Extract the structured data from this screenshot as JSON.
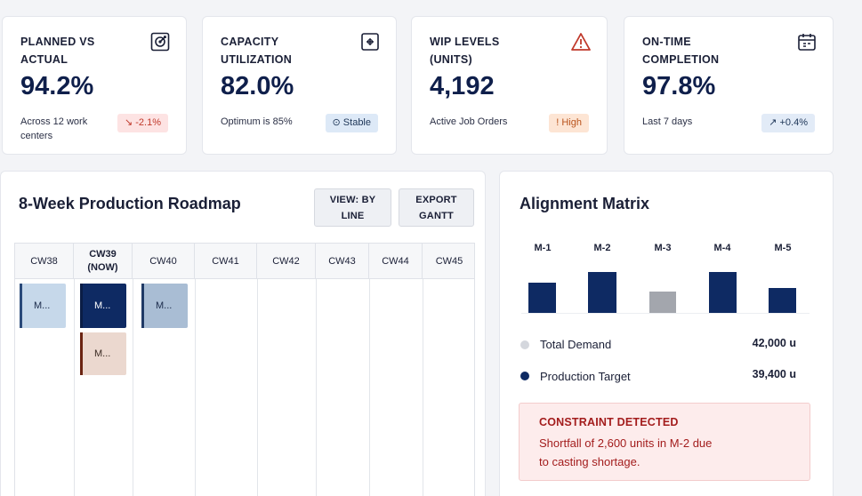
{
  "kpis": [
    {
      "title": "PLANNED VS ACTUAL",
      "value": "94.2%",
      "sub": "Across 12 work centers",
      "badge": "↘ -2.1%",
      "icon": "target-icon"
    },
    {
      "title": "CAPACITY UTILIZATION",
      "value": "82.0%",
      "sub": "Optimum is 85%",
      "badge": "⊙ Stable",
      "icon": "gauge-icon"
    },
    {
      "title": "WIP LEVELS (UNITS)",
      "value": "4,192",
      "sub": "Active Job Orders",
      "badge": "! High",
      "icon": "warning-icon"
    },
    {
      "title": "ON-TIME COMPLETION",
      "value": "97.8%",
      "sub": "Last 7 days",
      "badge": "↗ +0.4%",
      "icon": "calendar-icon"
    }
  ],
  "roadmap": {
    "title": "8-Week Production Roadmap",
    "view_button": "VIEW: BY LINE",
    "export_button": "EXPORT GANTT",
    "weeks": [
      "CW38",
      "CW39 (NOW)",
      "CW40",
      "CW41",
      "CW42",
      "CW43",
      "CW44",
      "CW45"
    ],
    "tasks": [
      {
        "label": "M..."
      },
      {
        "label": "M..."
      },
      {
        "label": "M..."
      },
      {
        "label": "M..."
      }
    ]
  },
  "matrix": {
    "title": "Alignment Matrix",
    "machines": [
      "M-1",
      "M-2",
      "M-3",
      "M-4",
      "M-5"
    ],
    "legend": [
      {
        "label": "Total Demand",
        "value": "42,000 u",
        "color": "#d4d7dd"
      },
      {
        "label": "Production Target",
        "value": "39,400 u",
        "color": "#0e2a63"
      }
    ],
    "alert": {
      "title": "CONSTRAINT DETECTED",
      "text": "Shortfall of 2,600 units in M-2 due to casting shortage."
    }
  },
  "colors": {
    "primary": "#0e2a63",
    "muted": "#a3a6ad",
    "danger": "#a31d1d"
  }
}
